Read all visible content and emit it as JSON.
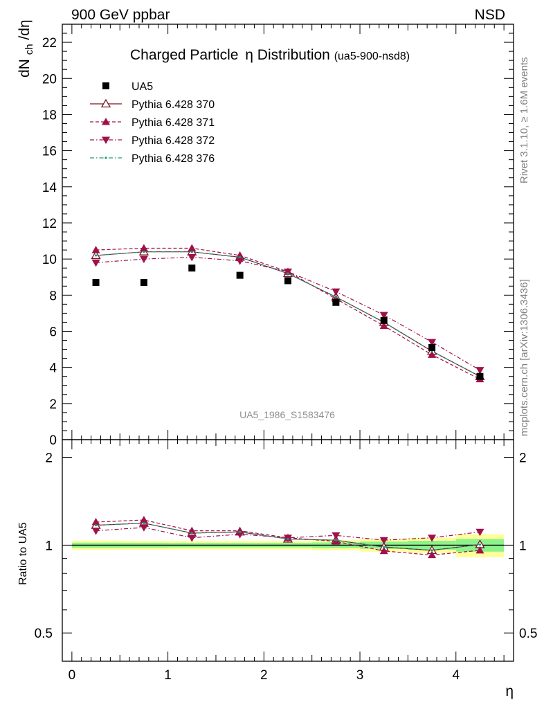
{
  "header": {
    "left": "900 GeV ppbar",
    "right": "NSD"
  },
  "side_labels": {
    "rivet": "Rivet 3.1.10, ≥ 1.6M events",
    "mcplots": "mcplots.cern.ch [arXiv:1306.3436]"
  },
  "main_title": {
    "text": "Charged Particle",
    "greek": "η",
    "text2": " Distribution",
    "suffix": "(ua5-900-nsd8)"
  },
  "watermark": "UA5_1986_S1583476",
  "colors": {
    "data": "#000000",
    "p370": "#7a1520",
    "p371": "#a0104a",
    "p372": "#a0104a",
    "p376": "#1a9a7a",
    "band_outer": "#ffff99",
    "band_inner": "#8cf28c"
  },
  "chart_data": [
    {
      "type": "scatter",
      "panel": "main",
      "ylabel": "dN_ch/dη",
      "ylabel_parts": {
        "main": "dN",
        "sub": "ch",
        "tail": "/dη"
      },
      "xlim": [
        -0.1,
        4.6
      ],
      "ylim": [
        0,
        23
      ],
      "yticks": [
        0,
        2,
        4,
        6,
        8,
        10,
        12,
        14,
        16,
        18,
        20,
        22
      ],
      "ytick_labels": [
        "0",
        "2",
        "4",
        "6",
        "8",
        "10",
        "12",
        "14",
        "16",
        "18",
        "20",
        "22"
      ],
      "x": [
        0.25,
        0.75,
        1.25,
        1.75,
        2.25,
        2.75,
        3.25,
        3.75,
        4.25
      ],
      "series": [
        {
          "name": "UA5",
          "marker": "square",
          "line": "none",
          "values": [
            8.7,
            8.7,
            9.5,
            9.1,
            8.8,
            7.6,
            6.6,
            5.1,
            3.5
          ]
        },
        {
          "name": "Pythia 6.428 370",
          "marker": "triangle-up-open",
          "line": "solid",
          "values": [
            10.2,
            10.4,
            10.4,
            10.1,
            9.2,
            7.9,
            6.5,
            4.9,
            3.5
          ]
        },
        {
          "name": "Pythia 6.428 371",
          "marker": "triangle-up",
          "line": "dashed",
          "values": [
            10.5,
            10.6,
            10.6,
            10.2,
            9.3,
            7.8,
            6.3,
            4.7,
            3.35
          ]
        },
        {
          "name": "Pythia 6.428 372",
          "marker": "triangle-down",
          "line": "dashdot",
          "values": [
            9.8,
            10.0,
            10.1,
            9.9,
            9.3,
            8.2,
            6.9,
            5.4,
            3.85
          ]
        },
        {
          "name": "Pythia 6.428 376",
          "marker": "dot",
          "line": "dashdot",
          "values": [
            10.2,
            10.4,
            10.4,
            10.1,
            9.2,
            7.9,
            6.5,
            4.9,
            3.5
          ]
        }
      ]
    },
    {
      "type": "scatter",
      "panel": "ratio",
      "ylabel": "Ratio to UA5",
      "xlabel": "η",
      "xlim": [
        -0.1,
        4.6
      ],
      "ylim": [
        0.4,
        2.3
      ],
      "xticks": [
        0,
        1,
        2,
        3,
        4
      ],
      "xtick_labels": [
        "0",
        "1",
        "2",
        "3",
        "4"
      ],
      "yticks": [
        0.5,
        1,
        2
      ],
      "ytick_labels": [
        "0.5",
        "1",
        "2"
      ],
      "x": [
        0.25,
        0.75,
        1.25,
        1.75,
        2.25,
        2.75,
        3.25,
        3.75,
        4.25
      ],
      "bands": {
        "edges": [
          0.0,
          0.5,
          1.0,
          1.5,
          2.0,
          2.5,
          3.0,
          3.5,
          4.0,
          4.5
        ],
        "outer_half": [
          0.037,
          0.035,
          0.034,
          0.034,
          0.034,
          0.04,
          0.05,
          0.06,
          0.09
        ],
        "inner_half": [
          0.02,
          0.019,
          0.018,
          0.018,
          0.018,
          0.022,
          0.028,
          0.035,
          0.05
        ]
      },
      "series": [
        {
          "name": "Pythia 6.428 370",
          "marker": "triangle-up-open",
          "line": "solid",
          "values": [
            1.17,
            1.19,
            1.1,
            1.11,
            1.05,
            1.04,
            0.985,
            0.96,
            1.005
          ]
        },
        {
          "name": "Pythia 6.428 371",
          "marker": "triangle-up",
          "line": "dashed",
          "values": [
            1.2,
            1.22,
            1.12,
            1.12,
            1.06,
            1.03,
            0.955,
            0.925,
            0.96
          ]
        },
        {
          "name": "Pythia 6.428 372",
          "marker": "triangle-down",
          "line": "dashdot",
          "values": [
            1.12,
            1.15,
            1.06,
            1.09,
            1.06,
            1.08,
            1.04,
            1.06,
            1.11
          ]
        },
        {
          "name": "Pythia 6.428 376",
          "marker": "dot",
          "line": "dashdot",
          "values": [
            1.17,
            1.19,
            1.1,
            1.11,
            1.05,
            1.04,
            0.985,
            0.96,
            1.005
          ]
        }
      ]
    }
  ]
}
